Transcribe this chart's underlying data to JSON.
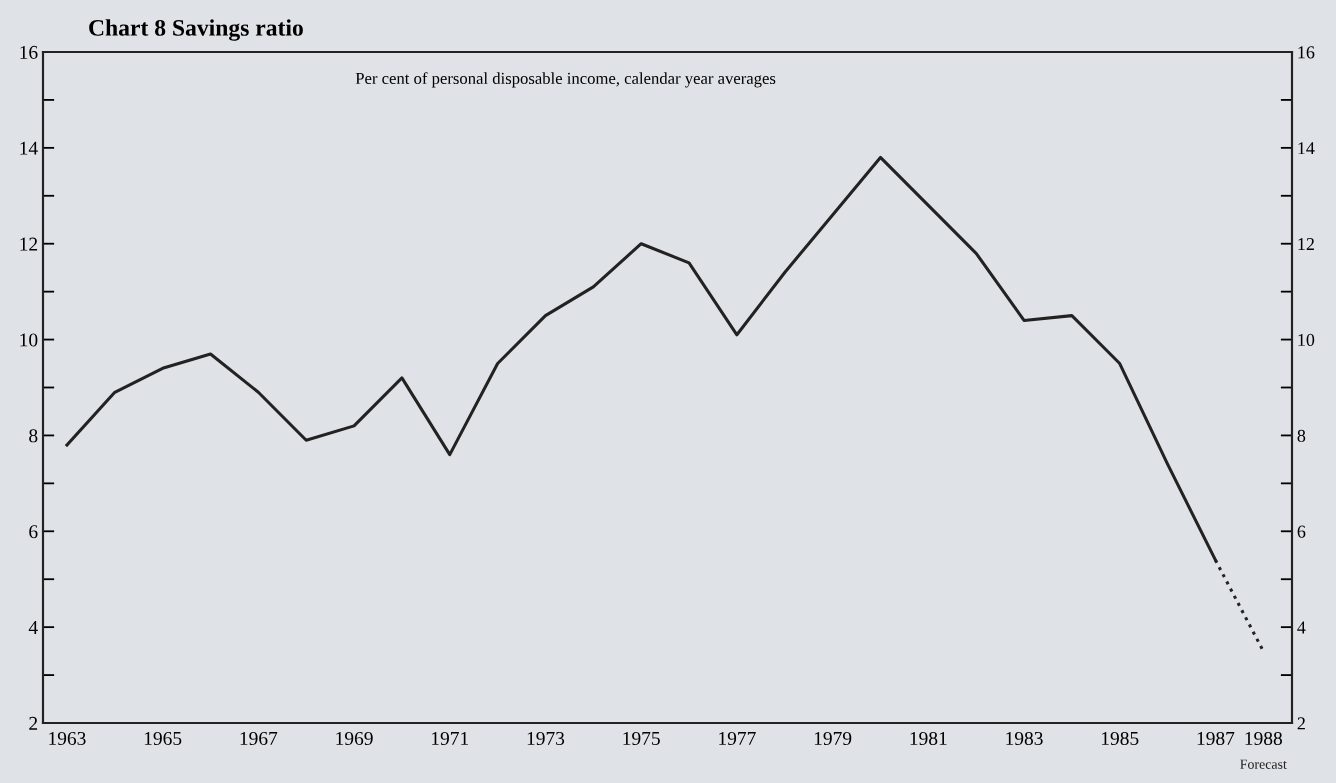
{
  "chart_data": {
    "type": "line",
    "title": "Chart 8 Savings ratio",
    "subtitle": "Per cent of personal disposable income, calendar year averages",
    "categories": [
      "1963",
      null,
      "1965",
      null,
      "1967",
      null,
      "1969",
      null,
      "1971",
      null,
      "1973",
      null,
      "1975",
      null,
      "1977",
      null,
      "1979",
      null,
      "1981",
      null,
      "1983",
      null,
      "1985",
      null,
      "1987",
      "1988"
    ],
    "series": [
      {
        "color": "#222222",
        "line_style": "solid",
        "values": [
          7.8,
          8.9,
          9.4,
          9.7,
          8.9,
          7.9,
          8.2,
          9.2,
          7.6,
          9.5,
          10.5,
          11.1,
          12.0,
          11.6,
          10.1,
          11.4,
          12.6,
          13.8,
          12.8,
          11.8,
          10.4,
          10.5,
          9.5,
          7.4,
          5.4,
          null
        ]
      },
      {
        "name": "Forecast",
        "color": "#222222",
        "line_style": "dotted",
        "values": [
          null,
          null,
          null,
          null,
          null,
          null,
          null,
          null,
          null,
          null,
          null,
          null,
          null,
          null,
          null,
          null,
          null,
          null,
          null,
          null,
          null,
          null,
          null,
          null,
          5.4,
          3.5
        ]
      }
    ],
    "ylim": [
      2,
      16
    ],
    "yticks": [
      2,
      {
        "value": 3,
        "label": null
      },
      4,
      {
        "value": 5,
        "label": null
      },
      6,
      {
        "value": 7,
        "label": null
      },
      8,
      {
        "value": 9,
        "label": null
      },
      10,
      {
        "value": 11,
        "label": null
      },
      12,
      {
        "value": 13,
        "label": null
      },
      14,
      {
        "value": 15,
        "label": null
      },
      16
    ],
    "y2lim": [
      2,
      16
    ],
    "y2ticks": [
      2,
      {
        "value": 3,
        "label": null
      },
      4,
      {
        "value": 5,
        "label": null
      },
      6,
      {
        "value": 7,
        "label": null
      },
      8,
      {
        "value": 9,
        "label": null
      },
      10,
      {
        "value": 11,
        "label": null
      },
      12,
      {
        "value": 13,
        "label": null
      },
      14,
      {
        "value": 15,
        "label": null
      },
      16
    ],
    "grid": false,
    "legend": false,
    "marker": "none"
  }
}
